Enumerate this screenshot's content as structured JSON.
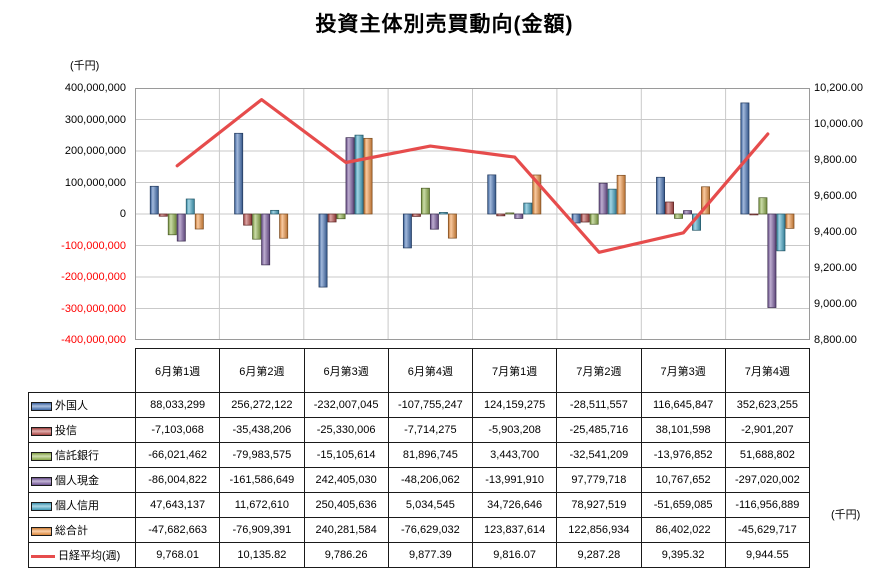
{
  "title": "投資主体別売買動向(金額)",
  "chart_data": {
    "type": "bar+line",
    "categories": [
      "6月第1週",
      "6月第2週",
      "6月第3週",
      "6月第4週",
      "7月第1週",
      "7月第2週",
      "7月第3週",
      "7月第4週"
    ],
    "series": [
      {
        "name": "外国人",
        "color": "#4472b8",
        "values": [
          88033299,
          256272122,
          -232007045,
          -107755247,
          124159275,
          -28511557,
          116645847,
          352623255
        ]
      },
      {
        "name": "投信",
        "color": "#b94a48",
        "values": [
          -7103068,
          -35438206,
          -25330006,
          -7714275,
          -5903208,
          -25485716,
          38101598,
          -2901207
        ]
      },
      {
        "name": "信託銀行",
        "color": "#94b64e",
        "values": [
          -66021462,
          -79983575,
          -15105614,
          81896745,
          3443700,
          -32541209,
          -13976852,
          51688802
        ]
      },
      {
        "name": "個人現金",
        "color": "#7a5ba1",
        "values": [
          -86004822,
          -161586649,
          242405030,
          -48206062,
          -13991910,
          97779718,
          10767652,
          -297020002
        ]
      },
      {
        "name": "個人信用",
        "color": "#45a9c9",
        "values": [
          47643137,
          11672610,
          250405636,
          5034545,
          34726646,
          78927519,
          -51659085,
          -116956889
        ]
      },
      {
        "name": "総合計",
        "color": "#f29440",
        "values": [
          -47682663,
          -76909391,
          240281584,
          -76629032,
          123837614,
          122856934,
          86402022,
          -45629717
        ]
      }
    ],
    "line_series": {
      "name": "日経平均(週)",
      "color": "#e64c4c",
      "values": [
        9768.01,
        10135.82,
        9786.26,
        9877.39,
        9816.07,
        9287.28,
        9395.32,
        9944.55
      ]
    },
    "left_axis": {
      "label": "(千円)",
      "min": -400000000,
      "max": 400000000,
      "step": 100000000,
      "negative_color": "#ff0000"
    },
    "right_axis": {
      "label": "(千円)",
      "min": 8800,
      "max": 10200,
      "step": 200
    },
    "grid": true,
    "legend_position": "table-left"
  }
}
